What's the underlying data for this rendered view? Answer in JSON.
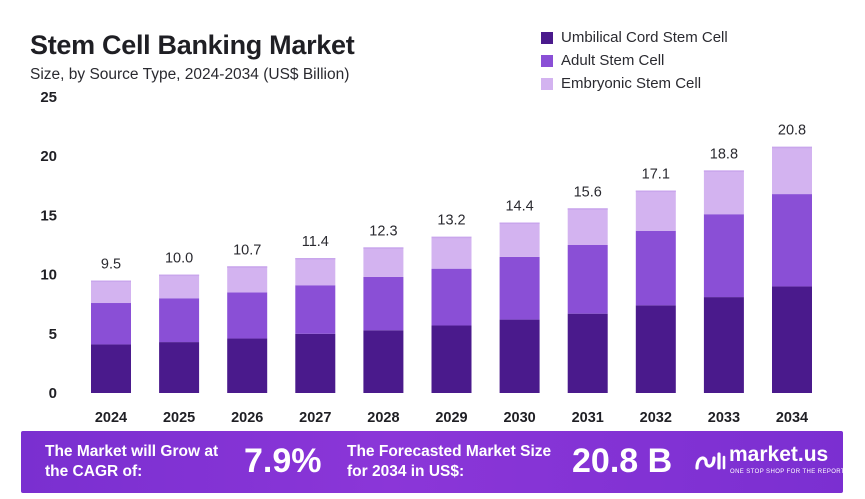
{
  "title": "Stem Cell Banking Market",
  "subtitle": "Size, by Source Type, 2024-2034 (US$ Billion)",
  "legend": [
    {
      "label": "Umbilical Cord Stem Cell",
      "color": "#4a1a8c"
    },
    {
      "label": "Adult Stem Cell",
      "color": "#8a4fd6"
    },
    {
      "label": "Embryonic Stem Cell",
      "color": "#d3b3f0"
    }
  ],
  "chart_data": {
    "type": "bar",
    "stacked": true,
    "title": "Stem Cell Banking Market",
    "subtitle": "Size, by Source Type, 2024-2034 (US$ Billion)",
    "xlabel": "",
    "ylabel": "",
    "ylim": [
      0,
      25
    ],
    "yticks": [
      0,
      5,
      10,
      15,
      20,
      25
    ],
    "grid": false,
    "legend_position": "top-right",
    "categories": [
      "2024",
      "2025",
      "2026",
      "2027",
      "2028",
      "2029",
      "2030",
      "2031",
      "2032",
      "2033",
      "2034"
    ],
    "series": [
      {
        "name": "Umbilical Cord Stem Cell",
        "color": "#4a1a8c",
        "values": [
          4.1,
          4.3,
          4.6,
          5.0,
          5.3,
          5.7,
          6.2,
          6.7,
          7.4,
          8.1,
          9.0
        ]
      },
      {
        "name": "Adult Stem Cell",
        "color": "#8a4fd6",
        "values": [
          3.5,
          3.7,
          3.9,
          4.1,
          4.5,
          4.8,
          5.3,
          5.8,
          6.3,
          7.0,
          7.8
        ]
      },
      {
        "name": "Embryonic Stem Cell",
        "color": "#d3b3f0",
        "values": [
          1.9,
          2.0,
          2.2,
          2.3,
          2.5,
          2.7,
          2.9,
          3.1,
          3.4,
          3.7,
          4.0
        ]
      }
    ],
    "totals": [
      "9.5",
      "10.0",
      "10.7",
      "11.4",
      "12.3",
      "13.2",
      "14.4",
      "15.6",
      "17.1",
      "18.8",
      "20.8"
    ]
  },
  "footer": {
    "cagr_text": "The Market will Grow at the CAGR of:",
    "cagr_value": "7.9%",
    "forecast_text": "The Forecasted Market Size for 2034 in US$:",
    "forecast_value": "20.8 B",
    "brand": "market.us",
    "tagline": "ONE STOP SHOP FOR THE REPORTS"
  }
}
